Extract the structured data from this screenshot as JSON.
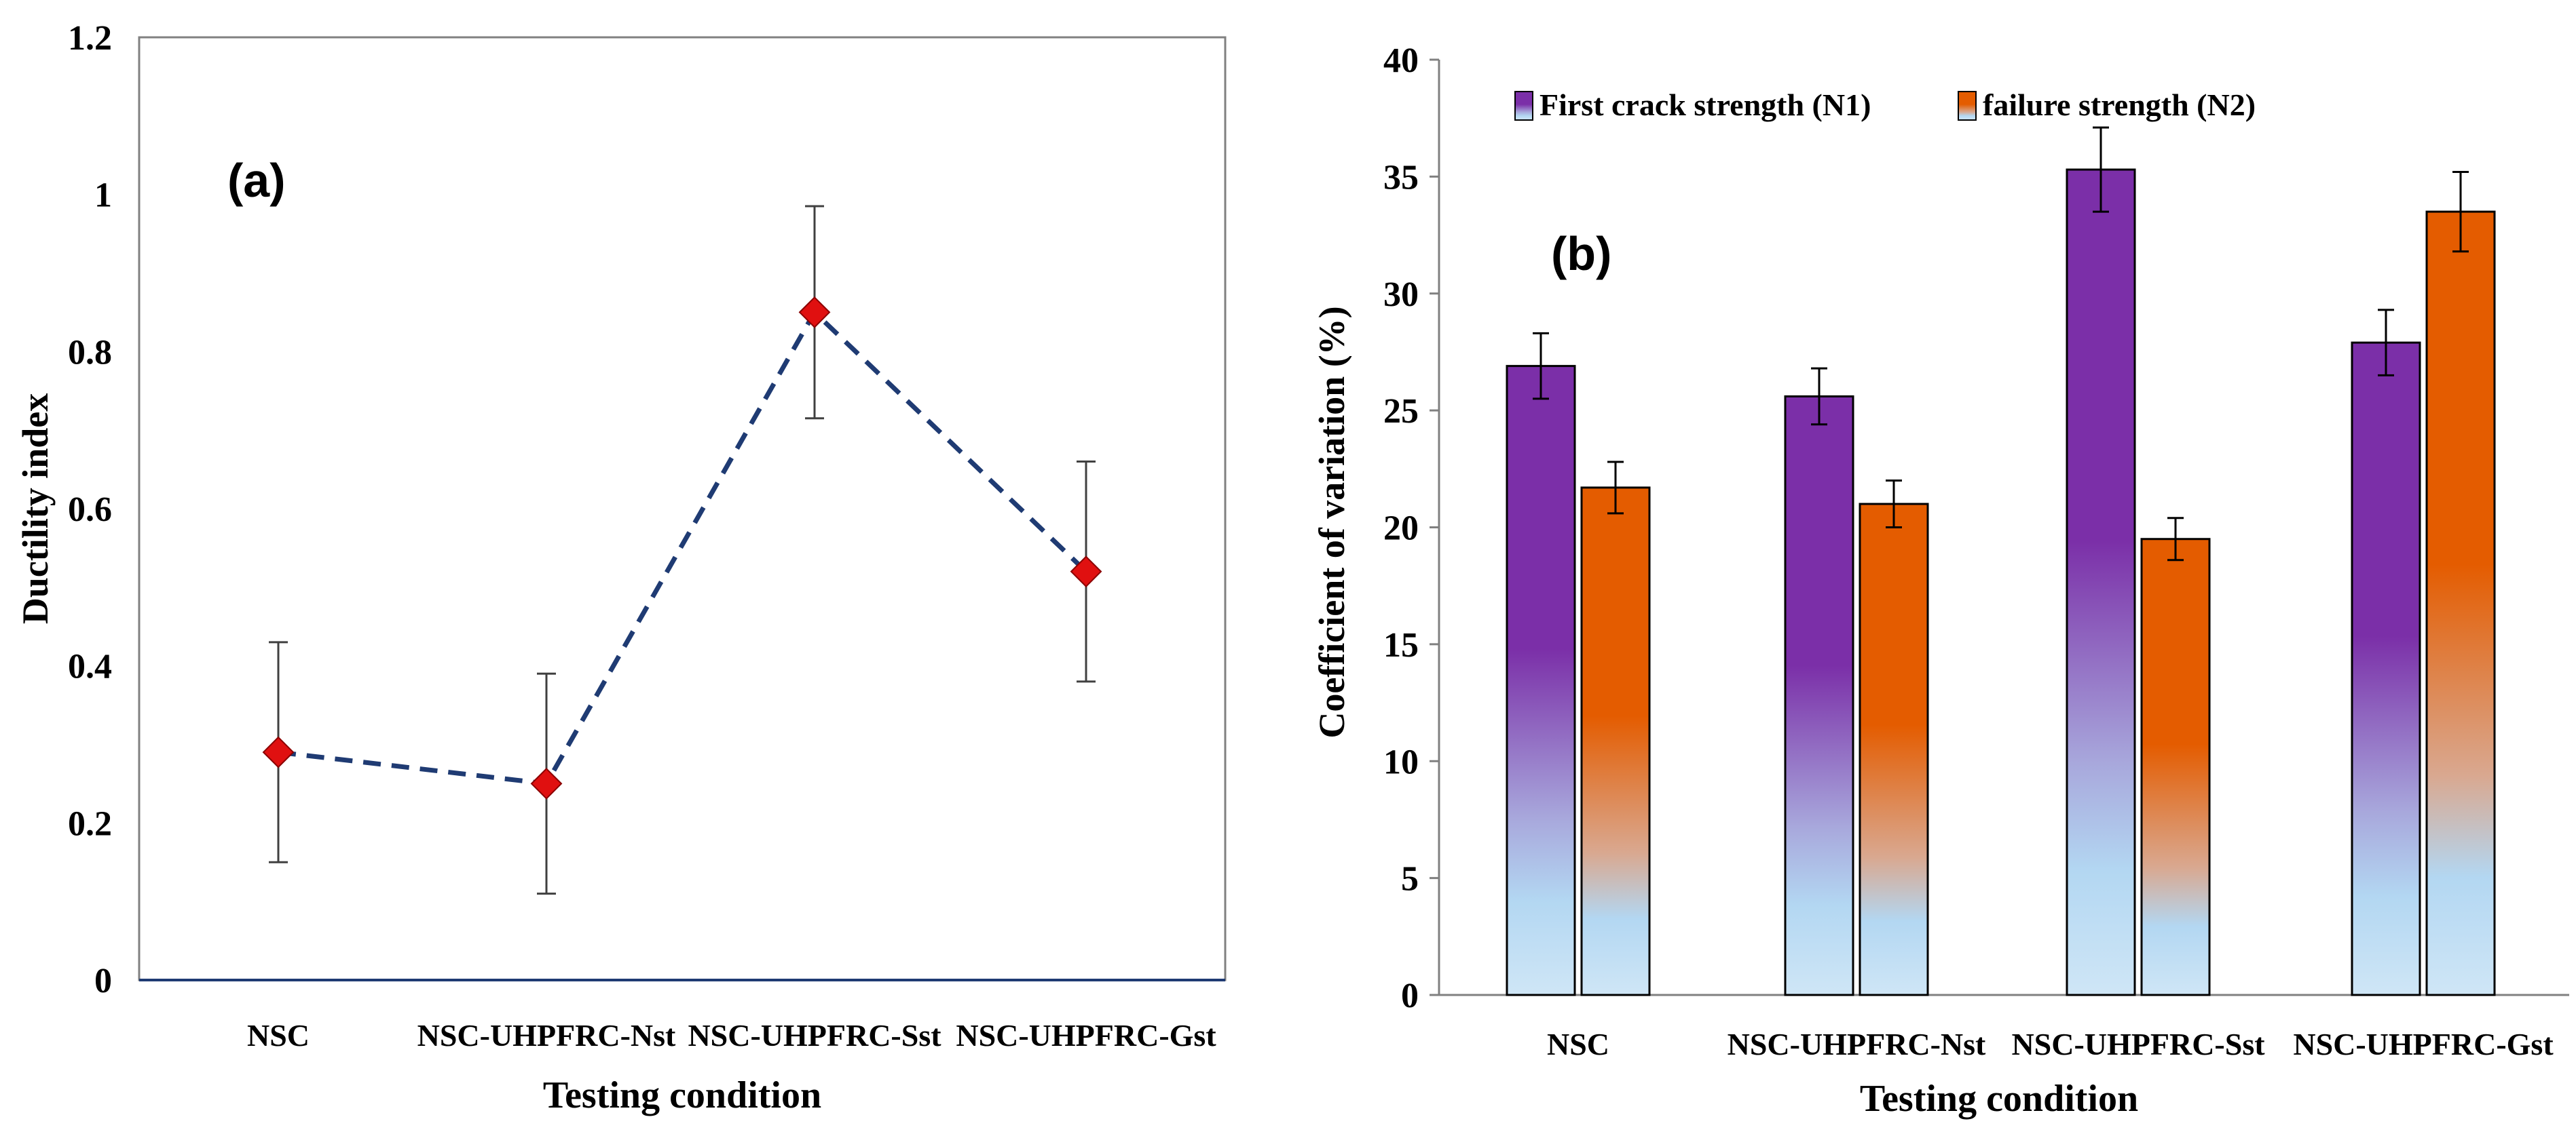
{
  "chart_data": [
    {
      "type": "line",
      "panel_label": "(a)",
      "xlabel": "Testing condition",
      "ylabel": "Ductility index",
      "categories": [
        "NSC",
        "NSC-UHPFRC-Nst",
        "NSC-UHPFRC-Sst",
        "NSC-UHPFRC-Gst"
      ],
      "values": [
        0.29,
        0.25,
        0.85,
        0.52
      ],
      "errors": [
        0.14,
        0.14,
        0.135,
        0.14
      ],
      "ylim": [
        0,
        1.2
      ],
      "yticks": [
        "0",
        "0.2",
        "0.4",
        "0.6",
        "0.8",
        "1",
        "1.2"
      ],
      "line_color": "#1f3b73",
      "marker_color": "#e01010",
      "grid": false
    },
    {
      "type": "bar",
      "panel_label": "(b)",
      "xlabel": "Testing condition",
      "ylabel": "Coefficient of variation (%)",
      "categories": [
        "NSC",
        "NSC-UHPFRC-Nst",
        "NSC-UHPFRC-Sst",
        "NSC-UHPFRC-Gst"
      ],
      "series": [
        {
          "name": "First crack strength (N1)",
          "values": [
            26.9,
            25.6,
            35.3,
            27.9
          ],
          "errors": [
            1.4,
            1.2,
            1.8,
            1.4
          ],
          "color_top": "#7b2fa8",
          "color_bottom": "#c8e0f2"
        },
        {
          "name": "failure strength (N2)",
          "values": [
            21.7,
            21.0,
            19.5,
            33.5
          ],
          "errors": [
            1.1,
            1.0,
            0.9,
            1.7
          ],
          "color_top": "#e45c00",
          "color_bottom": "#c8e0f2"
        }
      ],
      "ylim": [
        0,
        40
      ],
      "yticks": [
        "0",
        "5",
        "10",
        "15",
        "20",
        "25",
        "30",
        "35",
        "40"
      ],
      "legend_position": "top",
      "grid": false
    }
  ]
}
